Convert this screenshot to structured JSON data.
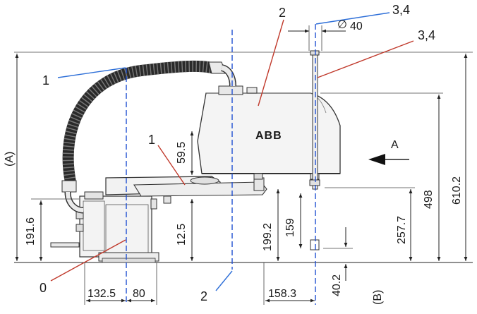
{
  "callouts": {
    "c1_top": "1",
    "c1_mid": "1",
    "c2_top": "2",
    "c2_bot": "2",
    "c34_top": "3,4",
    "c34_right": "3,4",
    "c0": "0"
  },
  "dimensions": {
    "d_A": "(A)",
    "d_B": "(B)",
    "d_191_6": "191.6",
    "d_12_5": "12.5",
    "d_59_5": "59.5",
    "d_199_2": "199.2",
    "d_159": "159",
    "d_257_7": "257.7",
    "d_498": "498",
    "d_610_2": "610.2",
    "d_40_2": "40.2",
    "d_132_5": "132.5",
    "d_80": "80",
    "d_158_3": "158.3",
    "d_dia": "40",
    "dia_symbol": "∅",
    "view_arrow": "A"
  },
  "brand": {
    "logo_text": "ABB"
  },
  "colors": {
    "leader_red": "#c0392b",
    "leader_blue": "#2e6fd8",
    "centerline_blue": "#1f4fd1",
    "robot_body": "#f4f4f4",
    "robot_stroke": "#333333",
    "hose": "#2a2a2a"
  }
}
